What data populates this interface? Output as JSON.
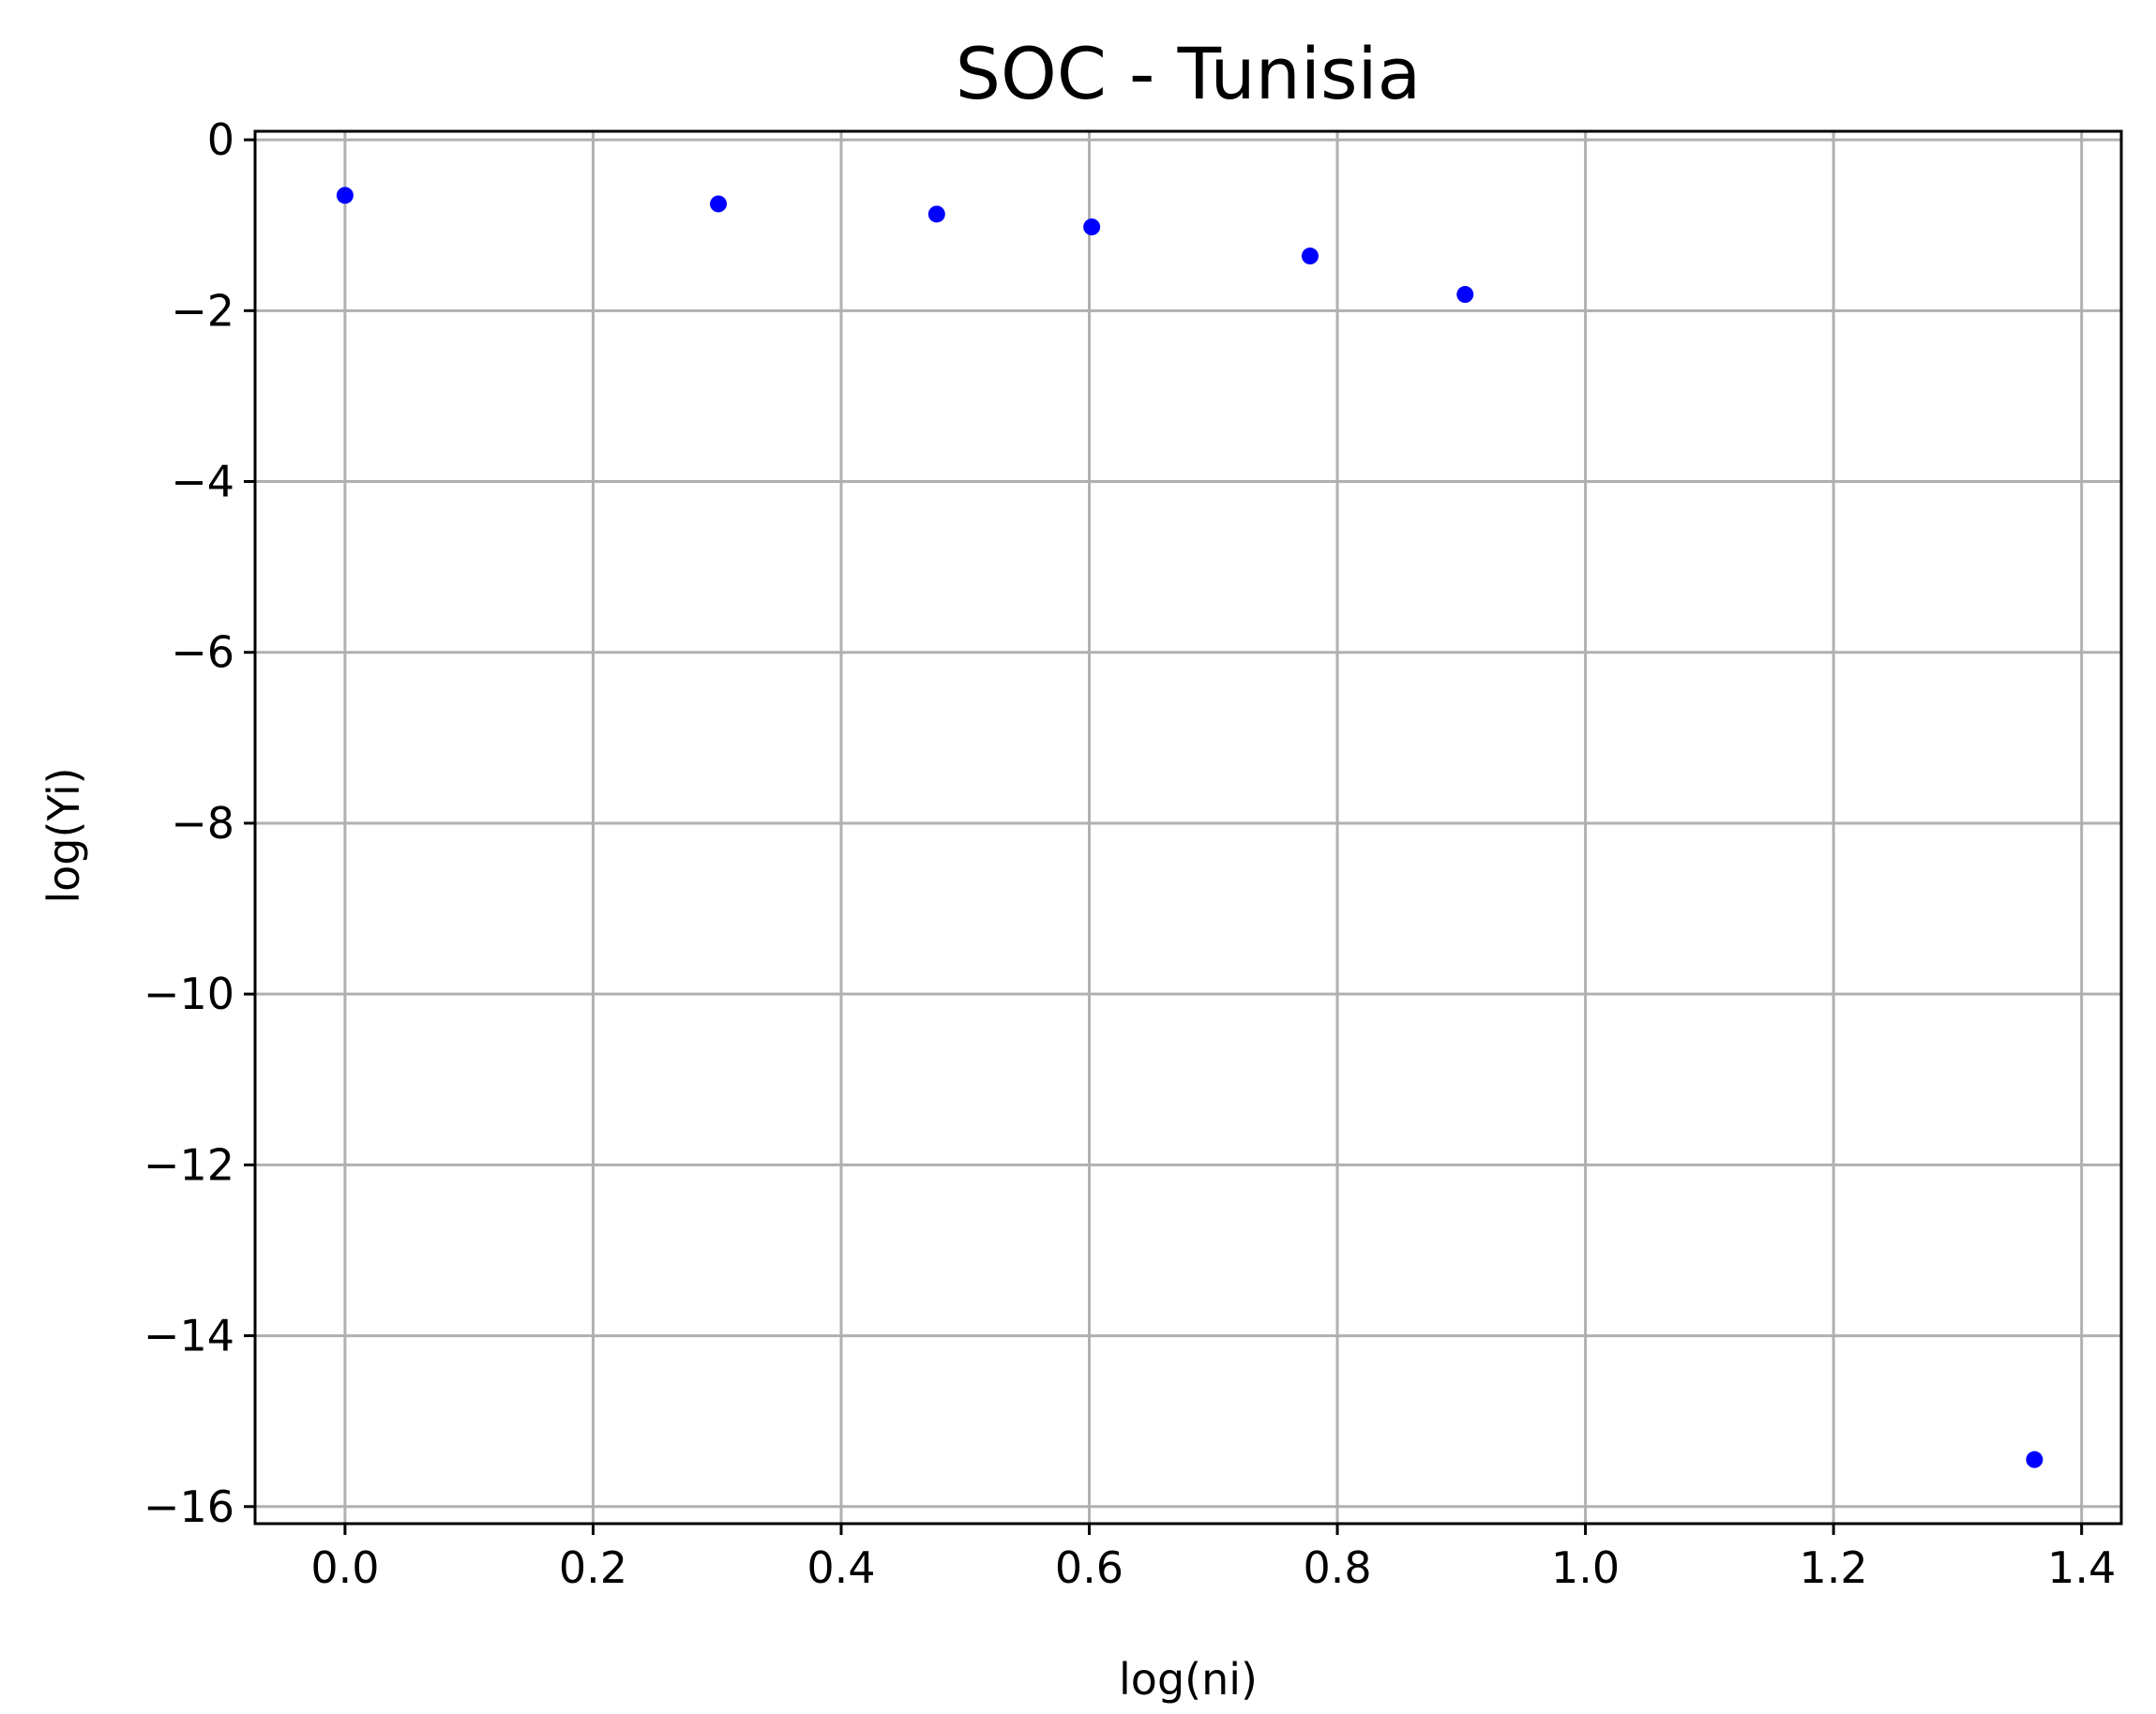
{
  "chart_data": {
    "type": "scatter",
    "title": "SOC - Tunisia",
    "xlabel": "log(ni)",
    "ylabel": "log(Yi)",
    "xlim": [
      -0.0725,
      1.432
    ],
    "ylim": [
      -16.2,
      0.1
    ],
    "xticks": [
      0.0,
      0.2,
      0.4,
      0.6,
      0.8,
      1.0,
      1.2,
      1.4
    ],
    "xtick_labels": [
      "0.0",
      "0.2",
      "0.4",
      "0.6",
      "0.8",
      "1.0",
      "1.2",
      "1.4"
    ],
    "yticks": [
      0,
      -2,
      -4,
      -6,
      -8,
      -10,
      -12,
      -14,
      -16
    ],
    "ytick_labels": [
      "0",
      "−2",
      "−4",
      "−6",
      "−8",
      "−10",
      "−12",
      "−14",
      "−16"
    ],
    "grid": true,
    "marker_color": "#0000ff",
    "series": [
      {
        "x": [
          0.0,
          0.301,
          0.477,
          0.602,
          0.778,
          0.903,
          1.362
        ],
        "y": [
          -0.65,
          -0.75,
          -0.87,
          -1.02,
          -1.36,
          -1.81,
          -15.45
        ]
      }
    ]
  }
}
